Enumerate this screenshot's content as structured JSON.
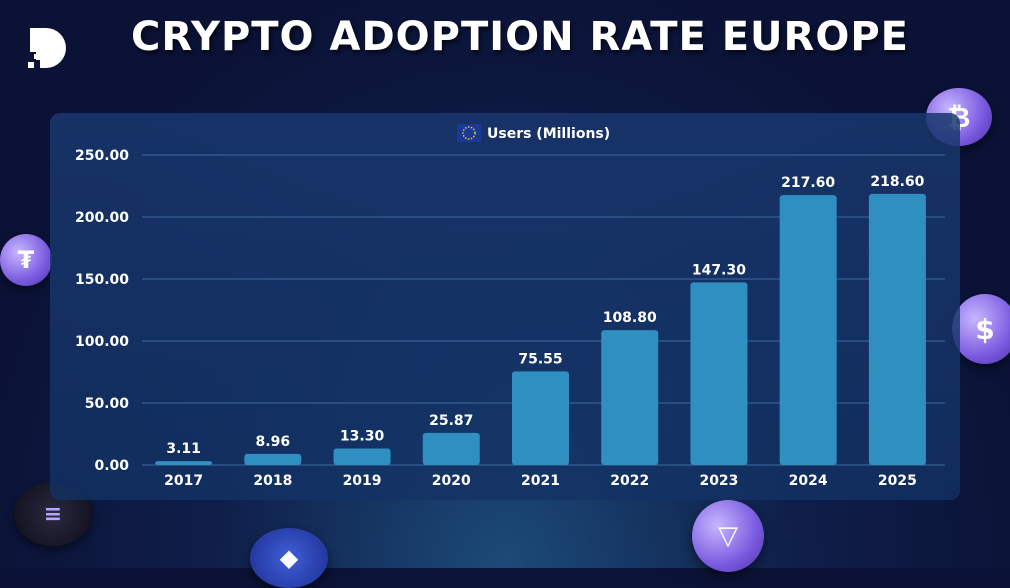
{
  "header": {
    "title": "CRYPTO ADOPTION RATE EUROPE"
  },
  "colors": {
    "bar": "#2e8fc0",
    "grid": "#3d6a9e",
    "text": "#ffffff"
  },
  "chart_data": {
    "type": "bar",
    "title": "",
    "legend": "Users (Millions)",
    "legend_placement": "top-center",
    "categories": [
      "2017",
      "2018",
      "2019",
      "2020",
      "2021",
      "2022",
      "2023",
      "2024",
      "2025"
    ],
    "series": [
      {
        "name": "Users (Millions)",
        "values": [
          3.11,
          8.96,
          13.3,
          25.87,
          75.55,
          108.8,
          147.3,
          217.6,
          218.6
        ]
      }
    ],
    "data_labels": [
      "3.11",
      "8.96",
      "13.30",
      "25.87",
      "75.55",
      "108.80",
      "147.30",
      "217.60",
      "218.60"
    ],
    "yticks": [
      "0.00",
      "50.00",
      "100.00",
      "150.00",
      "200.00",
      "250.00"
    ],
    "ylim": [
      0,
      250
    ],
    "xlabel": "",
    "ylabel": "",
    "grid": true
  }
}
